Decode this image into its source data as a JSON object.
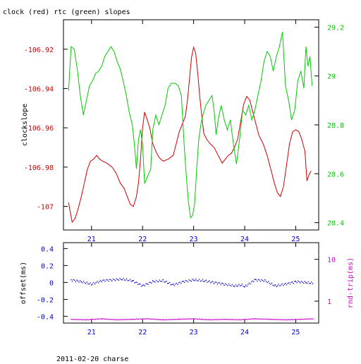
{
  "chart_data": [
    {
      "type": "line",
      "title": "clock (red) rtc (green) slopes",
      "xlim": [
        20.45,
        25.45
      ],
      "x_ticks": [
        "21",
        "22",
        "23",
        "24",
        "25"
      ],
      "y_left": {
        "label": "clockslope",
        "ylim": [
          -107.012,
          -106.905
        ],
        "ticks": [
          "-106.92",
          "-106.94",
          "-106.96",
          "-106.98",
          "-107"
        ],
        "color": "#cc0000"
      },
      "y_right": {
        "label": "",
        "ylim": [
          28.37,
          29.23
        ],
        "ticks": [
          "29.2",
          "29",
          "28.8",
          "28.6",
          "28.4"
        ],
        "color": "#00cc00"
      },
      "series": [
        {
          "axis": "left",
          "color": "#cc0000",
          "points": [
            [
              20.55,
              -106.998
            ],
            [
              20.62,
              -107.008
            ],
            [
              20.68,
              -107.006
            ],
            [
              20.74,
              -107.001
            ],
            [
              20.8,
              -106.995
            ],
            [
              20.86,
              -106.988
            ],
            [
              20.92,
              -106.981
            ],
            [
              20.98,
              -106.977
            ],
            [
              21.04,
              -106.976
            ],
            [
              21.1,
              -106.974
            ],
            [
              21.16,
              -106.976
            ],
            [
              21.22,
              -106.977
            ],
            [
              21.3,
              -106.978
            ],
            [
              21.4,
              -106.98
            ],
            [
              21.48,
              -106.983
            ],
            [
              21.56,
              -106.988
            ],
            [
              21.64,
              -106.991
            ],
            [
              21.7,
              -106.995
            ],
            [
              21.76,
              -106.999
            ],
            [
              21.82,
              -107.0
            ],
            [
              21.88,
              -106.995
            ],
            [
              21.92,
              -106.988
            ],
            [
              21.96,
              -106.976
            ],
            [
              22.0,
              -106.96
            ],
            [
              22.04,
              -106.952
            ],
            [
              22.08,
              -106.955
            ],
            [
              22.14,
              -106.96
            ],
            [
              22.2,
              -106.968
            ],
            [
              22.26,
              -106.972
            ],
            [
              22.32,
              -106.975
            ],
            [
              22.4,
              -106.977
            ],
            [
              22.5,
              -106.976
            ],
            [
              22.6,
              -106.974
            ],
            [
              22.66,
              -106.968
            ],
            [
              22.72,
              -106.962
            ],
            [
              22.78,
              -106.958
            ],
            [
              22.84,
              -106.954
            ],
            [
              22.88,
              -106.946
            ],
            [
              22.92,
              -106.935
            ],
            [
              22.96,
              -106.924
            ],
            [
              23.0,
              -106.919
            ],
            [
              23.04,
              -106.922
            ],
            [
              23.08,
              -106.932
            ],
            [
              23.12,
              -106.944
            ],
            [
              23.16,
              -106.954
            ],
            [
              23.2,
              -106.963
            ],
            [
              23.26,
              -106.966
            ],
            [
              23.32,
              -106.968
            ],
            [
              23.4,
              -106.97
            ],
            [
              23.48,
              -106.974
            ],
            [
              23.56,
              -106.978
            ],
            [
              23.62,
              -106.976
            ],
            [
              23.68,
              -106.974
            ],
            [
              23.74,
              -106.973
            ],
            [
              23.8,
              -106.97
            ],
            [
              23.86,
              -106.966
            ],
            [
              23.9,
              -106.96
            ],
            [
              23.94,
              -106.954
            ],
            [
              23.98,
              -106.948
            ],
            [
              24.04,
              -106.944
            ],
            [
              24.1,
              -106.946
            ],
            [
              24.16,
              -106.952
            ],
            [
              24.22,
              -106.958
            ],
            [
              24.28,
              -106.964
            ],
            [
              24.36,
              -106.968
            ],
            [
              24.44,
              -106.974
            ],
            [
              24.52,
              -106.982
            ],
            [
              24.58,
              -106.988
            ],
            [
              24.64,
              -106.993
            ],
            [
              24.7,
              -106.995
            ],
            [
              24.76,
              -106.99
            ],
            [
              24.82,
              -106.979
            ],
            [
              24.88,
              -106.968
            ],
            [
              24.94,
              -106.962
            ],
            [
              25.0,
              -106.961
            ],
            [
              25.06,
              -106.962
            ],
            [
              25.12,
              -106.966
            ],
            [
              25.18,
              -106.972
            ],
            [
              25.22,
              -106.987
            ],
            [
              25.26,
              -106.984
            ],
            [
              25.3,
              -106.982
            ]
          ]
        },
        {
          "axis": "right",
          "color": "#00cc00",
          "points": [
            [
              20.55,
              28.94
            ],
            [
              20.6,
              29.12
            ],
            [
              20.66,
              29.11
            ],
            [
              20.72,
              29.03
            ],
            [
              20.78,
              28.92
            ],
            [
              20.84,
              28.84
            ],
            [
              20.9,
              28.9
            ],
            [
              20.96,
              28.96
            ],
            [
              21.02,
              28.98
            ],
            [
              21.08,
              29.01
            ],
            [
              21.14,
              29.02
            ],
            [
              21.2,
              29.04
            ],
            [
              21.26,
              29.08
            ],
            [
              21.32,
              29.1
            ],
            [
              21.38,
              29.12
            ],
            [
              21.44,
              29.1
            ],
            [
              21.5,
              29.06
            ],
            [
              21.56,
              29.03
            ],
            [
              21.62,
              28.98
            ],
            [
              21.68,
              28.92
            ],
            [
              21.74,
              28.85
            ],
            [
              21.8,
              28.8
            ],
            [
              21.84,
              28.72
            ],
            [
              21.88,
              28.62
            ],
            [
              21.92,
              28.74
            ],
            [
              21.96,
              28.78
            ],
            [
              22.0,
              28.72
            ],
            [
              22.04,
              28.56
            ],
            [
              22.08,
              28.58
            ],
            [
              22.12,
              28.6
            ],
            [
              22.16,
              28.62
            ],
            [
              22.2,
              28.78
            ],
            [
              22.26,
              28.84
            ],
            [
              22.32,
              28.8
            ],
            [
              22.38,
              28.84
            ],
            [
              22.44,
              28.88
            ],
            [
              22.5,
              28.95
            ],
            [
              22.56,
              28.97
            ],
            [
              22.64,
              28.97
            ],
            [
              22.7,
              28.96
            ],
            [
              22.76,
              28.92
            ],
            [
              22.82,
              28.7
            ],
            [
              22.86,
              28.58
            ],
            [
              22.9,
              28.48
            ],
            [
              22.94,
              28.42
            ],
            [
              22.98,
              28.43
            ],
            [
              23.02,
              28.48
            ],
            [
              23.06,
              28.62
            ],
            [
              23.1,
              28.74
            ],
            [
              23.14,
              28.8
            ],
            [
              23.18,
              28.84
            ],
            [
              23.24,
              28.88
            ],
            [
              23.3,
              28.9
            ],
            [
              23.36,
              28.92
            ],
            [
              23.4,
              28.86
            ],
            [
              23.44,
              28.76
            ],
            [
              23.48,
              28.82
            ],
            [
              23.54,
              28.88
            ],
            [
              23.6,
              28.82
            ],
            [
              23.66,
              28.78
            ],
            [
              23.72,
              28.82
            ],
            [
              23.78,
              28.72
            ],
            [
              23.84,
              28.64
            ],
            [
              23.9,
              28.74
            ],
            [
              23.96,
              28.86
            ],
            [
              24.02,
              28.84
            ],
            [
              24.08,
              28.88
            ],
            [
              24.14,
              28.82
            ],
            [
              24.2,
              28.86
            ],
            [
              24.26,
              28.92
            ],
            [
              24.32,
              28.98
            ],
            [
              24.38,
              29.06
            ],
            [
              24.44,
              29.1
            ],
            [
              24.5,
              29.08
            ],
            [
              24.56,
              29.02
            ],
            [
              24.62,
              29.08
            ],
            [
              24.68,
              29.12
            ],
            [
              24.74,
              29.18
            ],
            [
              24.8,
              28.96
            ],
            [
              24.86,
              28.9
            ],
            [
              24.92,
              28.82
            ],
            [
              24.98,
              28.86
            ],
            [
              25.04,
              28.98
            ],
            [
              25.1,
              29.02
            ],
            [
              25.16,
              28.95
            ],
            [
              25.2,
              29.12
            ],
            [
              25.24,
              29.04
            ],
            [
              25.28,
              29.08
            ],
            [
              25.32,
              28.96
            ]
          ]
        }
      ]
    },
    {
      "type": "scatter",
      "title": "",
      "xlim": [
        20.45,
        25.45
      ],
      "x_ticks": [
        "21",
        "22",
        "23",
        "24",
        "25"
      ],
      "footer": "2011-02-20 charse",
      "y_left": {
        "label": "offset(ms)",
        "ylim": [
          -0.48,
          0.47
        ],
        "ticks": [
          "0.4",
          "0.2",
          "0",
          "-0.2",
          "-0.4"
        ],
        "color": "#0000cc"
      },
      "y_right": {
        "label": "rnd-trip(ms)",
        "log_range": [
          0.3,
          25
        ],
        "ticks": [
          "10",
          "1"
        ],
        "color": "#cc00cc"
      },
      "series": [
        {
          "axis": "left",
          "color": "#0000cc",
          "points": [
            [
              20.6,
              0.03
            ],
            [
              20.8,
              0.01
            ],
            [
              21.0,
              -0.02
            ],
            [
              21.2,
              0.02
            ],
            [
              21.4,
              0.03
            ],
            [
              21.6,
              0.04
            ],
            [
              21.8,
              0.02
            ],
            [
              22.0,
              -0.04
            ],
            [
              22.2,
              0.01
            ],
            [
              22.4,
              0.02
            ],
            [
              22.6,
              -0.03
            ],
            [
              22.8,
              0.01
            ],
            [
              23.0,
              0.03
            ],
            [
              23.2,
              0.02
            ],
            [
              23.4,
              0.0
            ],
            [
              23.6,
              -0.02
            ],
            [
              23.8,
              -0.04
            ],
            [
              23.95,
              -0.03
            ],
            [
              24.0,
              -0.05
            ],
            [
              24.2,
              0.03
            ],
            [
              24.4,
              0.02
            ],
            [
              24.6,
              -0.04
            ],
            [
              24.8,
              -0.02
            ],
            [
              25.0,
              0.01
            ],
            [
              25.2,
              0.0
            ],
            [
              25.35,
              -0.01
            ]
          ]
        },
        {
          "axis": "right",
          "color": "#cc00cc",
          "points": [
            [
              20.6,
              0.37
            ],
            [
              20.9,
              0.36
            ],
            [
              21.2,
              0.38
            ],
            [
              21.5,
              0.36
            ],
            [
              21.8,
              0.37
            ],
            [
              22.1,
              0.38
            ],
            [
              22.4,
              0.36
            ],
            [
              22.7,
              0.37
            ],
            [
              23.0,
              0.38
            ],
            [
              23.3,
              0.36
            ],
            [
              23.6,
              0.37
            ],
            [
              23.9,
              0.36
            ],
            [
              24.2,
              0.38
            ],
            [
              24.5,
              0.37
            ],
            [
              24.8,
              0.36
            ],
            [
              25.1,
              0.37
            ],
            [
              25.35,
              0.38
            ]
          ]
        }
      ]
    }
  ]
}
